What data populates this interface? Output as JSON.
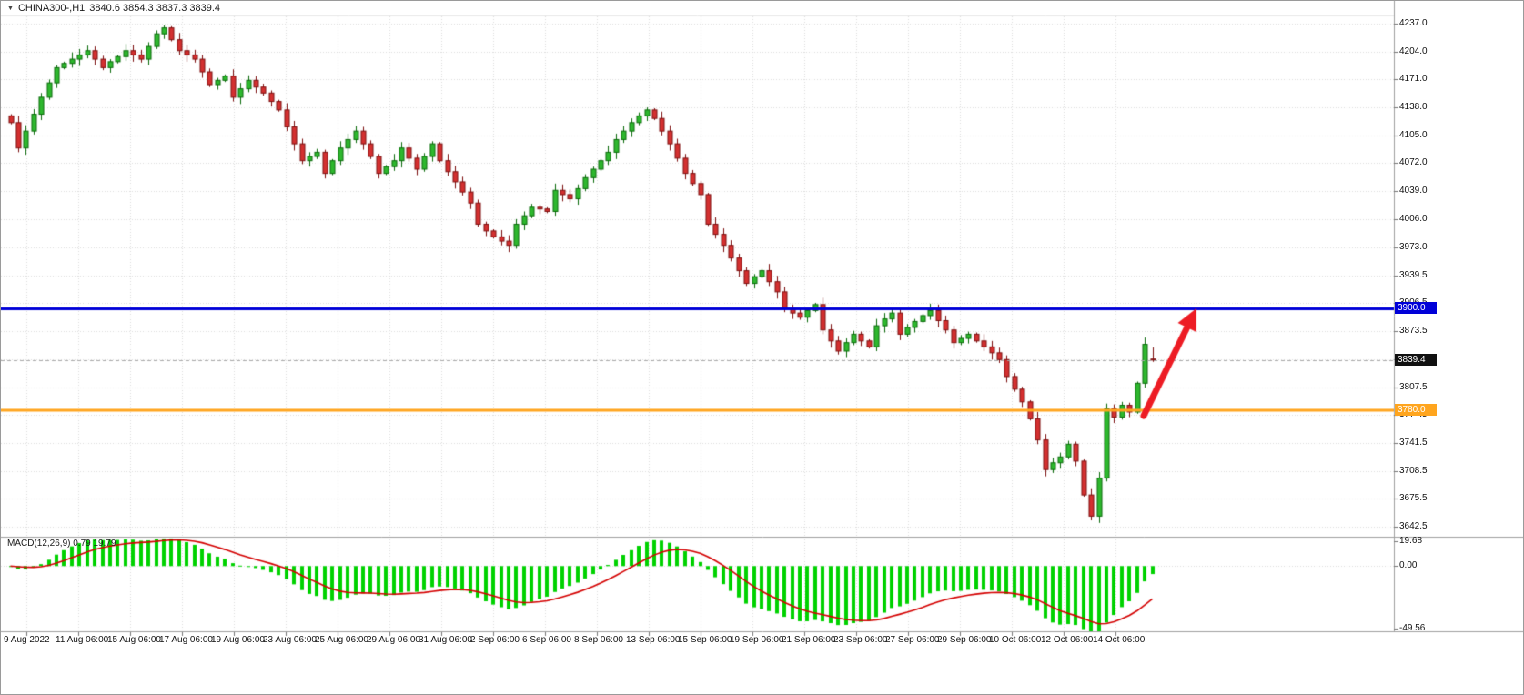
{
  "title": {
    "dropdown_icon": "▼",
    "symbol": "CHINA300-,H1",
    "ohlc": "3840.6 3854.3 3837.3 3839.4"
  },
  "indicator": {
    "label": "MACD(12,26,9) 0.79 19.79"
  },
  "colors": {
    "background": "#ffffff",
    "grid": "#dcdcdc",
    "up_fill": "#2eb82e",
    "up_outline": "#0b6b0b",
    "down_fill": "#d43030",
    "down_outline": "#7d1010",
    "macd_bar": "#00d200",
    "macd_signal": "#d40000",
    "resistance_line": "#0000d8",
    "support_line": "#ffa51e",
    "current_price_line": "#aaaaaa",
    "arrow": "#ed1c24",
    "separator": "#a0a0a0",
    "axis_text": "#111111",
    "badge_resistance_bg": "#0000d8",
    "badge_current_bg": "#111111",
    "badge_support_bg": "#ffa51e"
  },
  "price_axis": {
    "max": 4237.0,
    "min": 3642.5,
    "labels": [
      "4237.0",
      "4204.0",
      "4171.0",
      "4138.0",
      "4105.0",
      "4072.0",
      "4039.0",
      "4006.0",
      "3973.0",
      "3939.5",
      "3906.5",
      "3873.5",
      "3840.5",
      "3807.5",
      "3774.5",
      "3741.5",
      "3708.5",
      "3675.5",
      "3642.5"
    ]
  },
  "macd_axis": {
    "max": 19.68,
    "min": -49.56,
    "labels": [
      "19.68",
      "0.00",
      "-49.56"
    ]
  },
  "time_axis": {
    "labels": [
      "9 Aug 2022",
      "11 Aug 06:00",
      "15 Aug 06:00",
      "17 Aug 06:00",
      "19 Aug 06:00",
      "23 Aug 06:00",
      "25 Aug 06:00",
      "29 Aug 06:00",
      "31 Aug 06:00",
      "2 Sep 06:00",
      "6 Sep 06:00",
      "8 Sep 06:00",
      "13 Sep 06:00",
      "15 Sep 06:00",
      "19 Sep 06:00",
      "21 Sep 06:00",
      "23 Sep 06:00",
      "27 Sep 06:00",
      "29 Sep 06:00",
      "10 Oct 06:00",
      "12 Oct 06:00",
      "14 Oct 06:00"
    ]
  },
  "levels": {
    "resistance": {
      "label": "3900.0",
      "value": 3900.0
    },
    "current": {
      "label": "3839.4",
      "value": 3839.4
    },
    "support": {
      "label": "3780.0",
      "value": 3780.0
    }
  },
  "annotations": {
    "arrow": {
      "tail_x": 1256,
      "tail_y": 456,
      "tip_x": 1314,
      "tip_y": 338
    }
  },
  "chart_data": [
    {
      "type": "candlestick",
      "symbol": "CHINA300-",
      "timeframe": "H1",
      "title": "CHINA300-,H1",
      "ylim": [
        3642.5,
        4237.0
      ],
      "first_open": 4128,
      "ohlc_current": {
        "open": 3840.6,
        "high": 3854.3,
        "low": 3837.3,
        "close": 3839.4
      },
      "closes": [
        4120,
        4090,
        4110,
        4130,
        4150,
        4167,
        4185,
        4190,
        4195,
        4200,
        4205,
        4195,
        4185,
        4192,
        4198,
        4205,
        4200,
        4195,
        4210,
        4225,
        4232,
        4218,
        4205,
        4200,
        4195,
        4180,
        4165,
        4170,
        4175,
        4150,
        4160,
        4170,
        4162,
        4155,
        4145,
        4135,
        4115,
        4095,
        4075,
        4080,
        4085,
        4060,
        4075,
        4090,
        4100,
        4110,
        4095,
        4080,
        4060,
        4068,
        4075,
        4090,
        4078,
        4065,
        4080,
        4095,
        4075,
        4062,
        4050,
        4038,
        4025,
        4000,
        3992,
        3985,
        3980,
        3975,
        4000,
        4010,
        4020,
        4018,
        4015,
        4040,
        4035,
        4030,
        4042,
        4055,
        4065,
        4075,
        4085,
        4100,
        4110,
        4120,
        4128,
        4135,
        4125,
        4110,
        4095,
        4078,
        4060,
        4048,
        4035,
        4000,
        3988,
        3975,
        3960,
        3945,
        3930,
        3938,
        3945,
        3932,
        3920,
        3900,
        3895,
        3890,
        3898,
        3905,
        3875,
        3862,
        3850,
        3860,
        3870,
        3862,
        3855,
        3880,
        3888,
        3895,
        3870,
        3878,
        3885,
        3892,
        3898,
        3886,
        3875,
        3860,
        3865,
        3870,
        3862,
        3855,
        3848,
        3840,
        3820,
        3805,
        3790,
        3770,
        3745,
        3710,
        3718,
        3725,
        3740,
        3720,
        3680,
        3655,
        3700,
        3782,
        3772,
        3786,
        3778,
        3812,
        3858,
        3839.4
      ]
    },
    {
      "type": "bar",
      "name": "MACD histogram with signal line",
      "derived_from": "closes",
      "params": [
        12,
        26,
        9
      ],
      "ylim": [
        -49.56,
        19.68
      ],
      "bar_color": "green",
      "signal_color": "red"
    }
  ]
}
